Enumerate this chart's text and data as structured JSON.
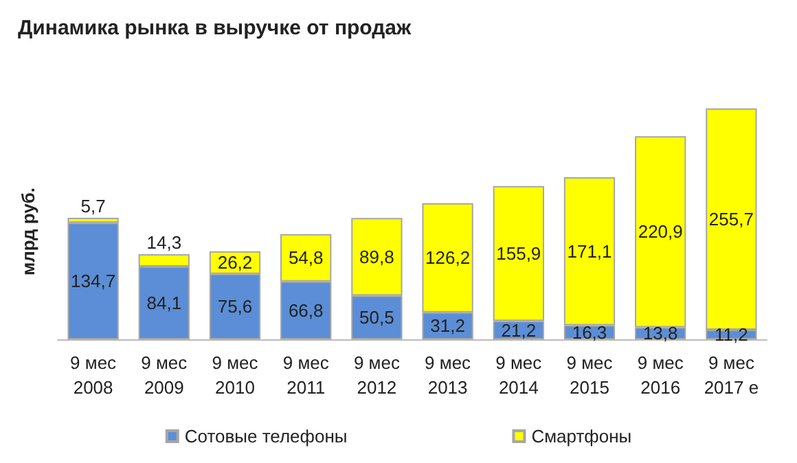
{
  "chart_data": {
    "type": "bar",
    "stacked": true,
    "title": "Динамика рынка в выручке от продаж",
    "ylabel": "млрд руб.",
    "categories": [
      "9 мес\n2008",
      "9 мес\n2009",
      "9 мес\n2010",
      "9 мес\n2011",
      "9 мес\n2012",
      "9 мес\n2013",
      "9 мес\n2014",
      "9 мес\n2015",
      "9 мес\n2016",
      "9 мес\n2017 е"
    ],
    "series": [
      {
        "name": "Сотовые телефоны",
        "color": "#5b8ed6",
        "values": [
          134.7,
          84.1,
          75.6,
          66.8,
          50.5,
          31.2,
          21.2,
          16.3,
          13.8,
          11.2
        ],
        "value_labels": [
          "134,7",
          "84,1",
          "75,6",
          "66,8",
          "50,5",
          "31,2",
          "21,2",
          "16,3",
          "13,8",
          "11,2"
        ]
      },
      {
        "name": "Смартфоны",
        "color": "#ffff00",
        "values": [
          5.7,
          14.3,
          26.2,
          54.8,
          89.8,
          126.2,
          155.9,
          171.1,
          220.9,
          255.7
        ],
        "value_labels": [
          "5,7",
          "14,3",
          "26,2",
          "54,8",
          "89,8",
          "126,2",
          "155,9",
          "171,1",
          "220,9",
          "255,7"
        ]
      }
    ],
    "legend": "bottom"
  }
}
